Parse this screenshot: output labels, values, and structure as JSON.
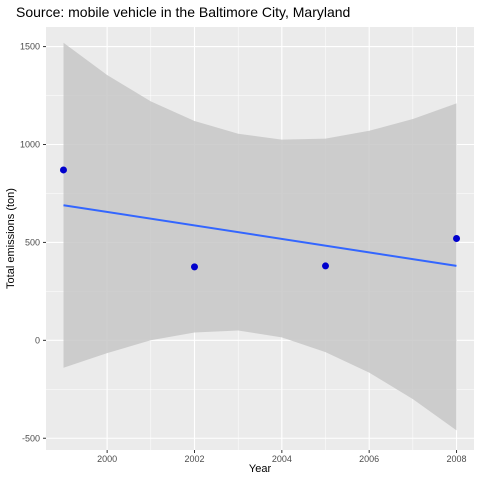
{
  "chart_data": {
    "type": "scatter",
    "title": "Source: mobile vehicle in the Baltimore City, Maryland",
    "xlabel": "Year",
    "ylabel": "Total emissions (ton)",
    "xlim": [
      1998.6,
      2008.4
    ],
    "ylim": [
      -560,
      1600
    ],
    "x_ticks": [
      2000,
      2002,
      2004,
      2006,
      2008
    ],
    "y_ticks": [
      -500,
      0,
      500,
      1000,
      1500
    ],
    "grid": true,
    "points": [
      {
        "x": 1999,
        "y": 870
      },
      {
        "x": 2002,
        "y": 375
      },
      {
        "x": 2005,
        "y": 380
      },
      {
        "x": 2008,
        "y": 520
      }
    ],
    "trend_line": {
      "x": [
        1999,
        2008
      ],
      "y": [
        690,
        380
      ]
    },
    "confidence_band": {
      "x": [
        1999,
        2000,
        2001,
        2002,
        2003,
        2004,
        2005,
        2006,
        2007,
        2008
      ],
      "upper": [
        1520,
        1355,
        1220,
        1120,
        1055,
        1025,
        1030,
        1070,
        1130,
        1210
      ],
      "lower": [
        -140,
        -65,
        0,
        40,
        50,
        15,
        -60,
        -165,
        -300,
        -460
      ]
    },
    "colors": {
      "panel": "#ebebeb",
      "grid_major": "#ffffff",
      "point": "#0000cd",
      "trend": "#3366ff",
      "band": "#c7c7c7"
    }
  }
}
